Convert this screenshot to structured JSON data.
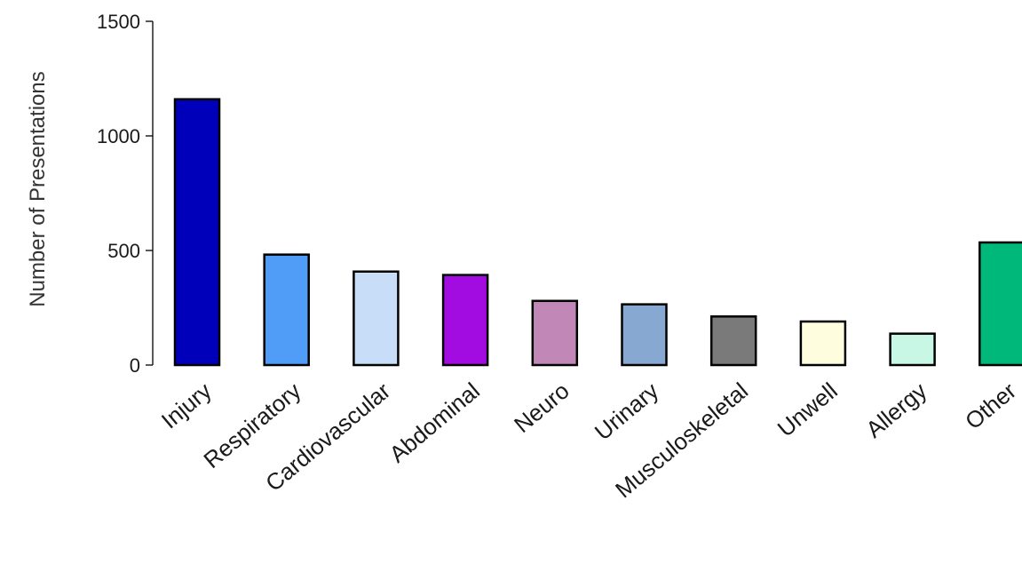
{
  "chart_data": {
    "type": "bar",
    "title": "",
    "xlabel": "",
    "ylabel": "Number of Presentations",
    "ylim": [
      0,
      1500
    ],
    "yticks": [
      0,
      500,
      1000,
      1500
    ],
    "grid": false,
    "categories": [
      "Injury",
      "Respiratory",
      "Cardiovascular",
      "Abdominal",
      "Neuro",
      "Urinary",
      "Musculoskeletal",
      "Unwell",
      "Allergy",
      "Other"
    ],
    "values": [
      1160,
      482,
      408,
      393,
      280,
      265,
      212,
      190,
      137,
      535
    ],
    "colors": [
      "#0000bb",
      "#4f9df7",
      "#c8ddf7",
      "#a20ce0",
      "#c087b7",
      "#87a8d1",
      "#7a7a7a",
      "#fefedf",
      "#c8f7e6",
      "#00b87a"
    ]
  }
}
